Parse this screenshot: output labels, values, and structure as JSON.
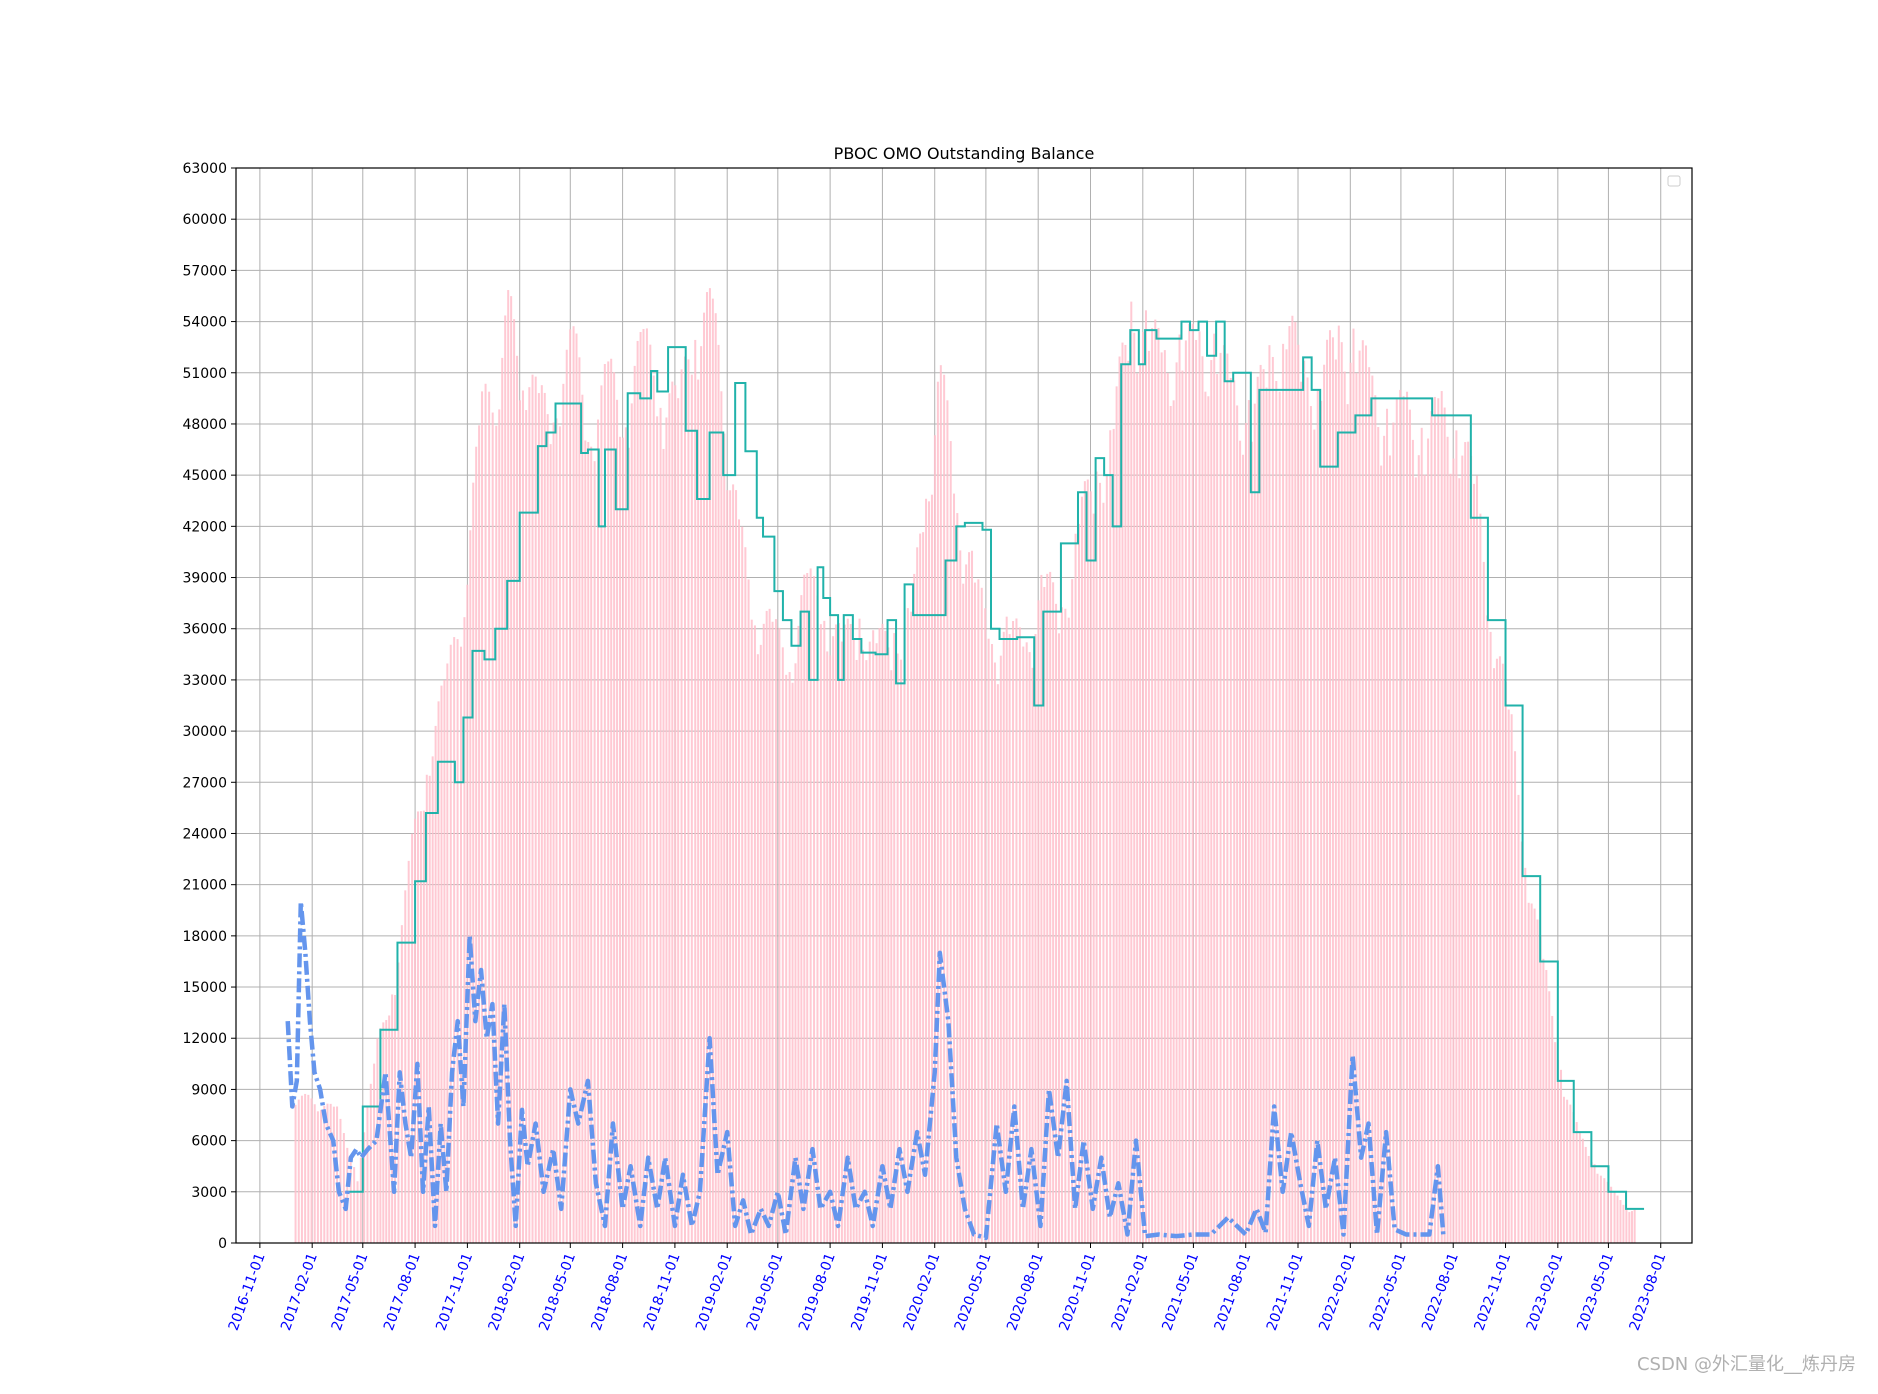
{
  "chart_data": {
    "type": "line",
    "title": "PBOC OMO Outstanding Balance",
    "xlabel": "",
    "ylabel": "",
    "xlim": [
      "2016-09-20",
      "2023-09-25"
    ],
    "ylim": [
      0,
      63000
    ],
    "grid": true,
    "legend": {
      "placement": "top-right",
      "entries": []
    },
    "x_tick_labels": [
      "2016-11-01",
      "2017-02-01",
      "2017-05-01",
      "2017-08-01",
      "2017-11-01",
      "2018-02-01",
      "2018-05-01",
      "2018-08-01",
      "2018-11-01",
      "2019-02-01",
      "2019-05-01",
      "2019-08-01",
      "2019-11-01",
      "2020-02-01",
      "2020-05-01",
      "2020-08-01",
      "2020-11-01",
      "2021-02-01",
      "2021-05-01",
      "2021-08-01",
      "2021-11-01",
      "2022-02-01",
      "2022-05-01",
      "2022-08-01",
      "2022-11-01",
      "2023-02-01",
      "2023-05-01",
      "2023-08-01"
    ],
    "y_tick_labels": [
      "0",
      "3000",
      "6000",
      "9000",
      "12000",
      "15000",
      "18000",
      "21000",
      "24000",
      "27000",
      "30000",
      "33000",
      "36000",
      "39000",
      "42000",
      "45000",
      "48000",
      "51000",
      "54000",
      "57000",
      "60000",
      "63000"
    ],
    "colors": {
      "bars": "#ffc0cb",
      "step_line": "#20b2aa",
      "dashdot_line": "#6495ed",
      "x_tick_text": "#0000ff"
    },
    "series": [
      {
        "type": "bar",
        "color": "#ffc0cb",
        "x": [
          "2017-01-01",
          "2017-03-15",
          "2017-04-20",
          "2017-05-25",
          "2017-06-25",
          "2017-07-25",
          "2017-08-25",
          "2017-09-25",
          "2017-10-25",
          "2017-11-25",
          "2017-12-20",
          "2018-01-10",
          "2018-02-05",
          "2018-03-05",
          "2018-04-05",
          "2018-05-05",
          "2018-06-05",
          "2018-07-05",
          "2018-08-05",
          "2018-09-05",
          "2018-10-05",
          "2018-11-05",
          "2018-12-05",
          "2019-01-05",
          "2019-01-25",
          "2019-02-20",
          "2019-03-20",
          "2019-04-20",
          "2019-05-20",
          "2019-06-20",
          "2019-07-20",
          "2019-08-20",
          "2019-09-20",
          "2019-10-20",
          "2019-11-20",
          "2019-12-20",
          "2020-01-15",
          "2020-02-10",
          "2020-03-10",
          "2020-04-10",
          "2020-05-10",
          "2020-06-10",
          "2020-07-10",
          "2020-08-10",
          "2020-09-10",
          "2020-10-10",
          "2020-11-10",
          "2020-12-10",
          "2021-01-10",
          "2021-02-10",
          "2021-03-10",
          "2021-04-10",
          "2021-05-10",
          "2021-06-10",
          "2021-07-10",
          "2021-08-10",
          "2021-09-10",
          "2021-10-10",
          "2021-11-10",
          "2021-12-10",
          "2022-01-10",
          "2022-02-10",
          "2022-03-10",
          "2022-04-10",
          "2022-05-10",
          "2022-06-10",
          "2022-07-10",
          "2022-08-10",
          "2022-09-10",
          "2022-10-10",
          "2022-11-10",
          "2022-12-10",
          "2023-01-10",
          "2023-02-10",
          "2023-03-10",
          "2023-04-10",
          "2023-05-10",
          "2023-06-05"
        ],
        "values": [
          9000,
          8000,
          4000,
          12000,
          16000,
          24000,
          30000,
          34000,
          40000,
          50000,
          52000,
          56000,
          54000,
          50000,
          52000,
          54000,
          50000,
          52000,
          51000,
          54000,
          52000,
          50000,
          56000,
          56000,
          50000,
          43000,
          38000,
          37000,
          35000,
          40000,
          38000,
          36000,
          38000,
          36000,
          37000,
          38000,
          45000,
          53000,
          44000,
          40000,
          36000,
          37000,
          36000,
          40000,
          38000,
          44000,
          46000,
          50000,
          56000,
          55000,
          53000,
          54000,
          54000,
          54000,
          51000,
          50000,
          53000,
          56000,
          52000,
          53000,
          54000,
          55000,
          51000,
          50000,
          50000,
          49000,
          50000,
          49000,
          45000,
          37000,
          31000,
          22000,
          16000,
          9500,
          6500,
          4500,
          3000,
          2000
        ]
      },
      {
        "type": "step",
        "color": "#20b2aa",
        "x": [
          "2017-04-01",
          "2017-05-01",
          "2017-06-01",
          "2017-07-01",
          "2017-08-01",
          "2017-08-20",
          "2017-09-10",
          "2017-10-10",
          "2017-10-25",
          "2017-11-10",
          "2017-12-01",
          "2017-12-20",
          "2018-01-10",
          "2018-02-01",
          "2018-03-05",
          "2018-03-20",
          "2018-04-05",
          "2018-05-20",
          "2018-06-01",
          "2018-06-20",
          "2018-07-01",
          "2018-07-20",
          "2018-08-10",
          "2018-09-01",
          "2018-09-20",
          "2018-10-01",
          "2018-10-20",
          "2018-11-20",
          "2018-12-10",
          "2019-01-01",
          "2019-01-25",
          "2019-02-15",
          "2019-03-05",
          "2019-03-25",
          "2019-04-05",
          "2019-04-25",
          "2019-05-10",
          "2019-05-25",
          "2019-06-10",
          "2019-06-25",
          "2019-07-10",
          "2019-07-20",
          "2019-08-01",
          "2019-08-15",
          "2019-08-25",
          "2019-09-10",
          "2019-09-25",
          "2019-10-20",
          "2019-11-10",
          "2019-11-25",
          "2019-12-10",
          "2019-12-25",
          "2020-01-20",
          "2020-02-20",
          "2020-03-10",
          "2020-03-25",
          "2020-04-10",
          "2020-04-25",
          "2020-05-10",
          "2020-05-25",
          "2020-06-10",
          "2020-06-25",
          "2020-07-10",
          "2020-07-25",
          "2020-08-10",
          "2020-08-25",
          "2020-09-10",
          "2020-09-25",
          "2020-10-10",
          "2020-10-25",
          "2020-11-10",
          "2020-11-25",
          "2020-12-10",
          "2020-12-25",
          "2021-01-10",
          "2021-01-25",
          "2021-02-05",
          "2021-02-25",
          "2021-03-10",
          "2021-03-25",
          "2021-04-10",
          "2021-04-25",
          "2021-05-10",
          "2021-05-25",
          "2021-06-10",
          "2021-06-25",
          "2021-07-10",
          "2021-07-25",
          "2021-08-10",
          "2021-08-25",
          "2021-09-10",
          "2021-09-25",
          "2021-10-10",
          "2021-10-25",
          "2021-11-10",
          "2021-11-25",
          "2021-12-10",
          "2021-12-25",
          "2022-01-10",
          "2022-01-25",
          "2022-02-10",
          "2022-02-25",
          "2022-03-10",
          "2022-03-25",
          "2022-04-10",
          "2022-04-25",
          "2022-05-10",
          "2022-05-25",
          "2022-06-10",
          "2022-06-25",
          "2022-07-10",
          "2022-08-01",
          "2022-09-01",
          "2022-10-01",
          "2022-11-01",
          "2022-12-01",
          "2023-01-01",
          "2023-02-01",
          "2023-03-01",
          "2023-04-01",
          "2023-05-01",
          "2023-06-01"
        ],
        "values": [
          3000,
          8000,
          12500,
          17600,
          21200,
          25200,
          28200,
          27000,
          30800,
          34700,
          34200,
          36000,
          38800,
          42800,
          46700,
          47500,
          49200,
          46300,
          46500,
          42000,
          46500,
          43000,
          49800,
          49500,
          51100,
          49900,
          52500,
          47600,
          43600,
          47500,
          45000,
          50400,
          46400,
          42500,
          41400,
          38200,
          36500,
          35000,
          37000,
          33000,
          39600,
          37800,
          36800,
          33000,
          36800,
          35400,
          34600,
          34500,
          36500,
          32800,
          38600,
          36800,
          36800,
          40000,
          42000,
          42200,
          42200,
          41800,
          36000,
          35400,
          35400,
          35500,
          35500,
          31500,
          37000,
          37000,
          41000,
          41000,
          44000,
          40000,
          46000,
          45000,
          42000,
          51500,
          53500,
          51500,
          53500,
          53000,
          53000,
          53000,
          54000,
          53500,
          54000,
          52000,
          54000,
          50500,
          51000,
          51000,
          44000,
          50000,
          50000,
          50000,
          50000,
          50000,
          51900,
          50000,
          45500,
          45500,
          47500,
          47500,
          48500,
          48500,
          49500,
          49500,
          49500,
          49500,
          49500,
          49500,
          49500,
          48500,
          48500,
          48500,
          42500,
          36500,
          31500,
          21500,
          16500,
          9500,
          6500,
          4500,
          3000,
          2000
        ]
      },
      {
        "type": "line",
        "style": "dashdot",
        "color": "#6495ed",
        "x": [
          "2016-12-20",
          "2016-12-28",
          "2017-01-05",
          "2017-01-12",
          "2017-01-20",
          "2017-01-28",
          "2017-02-05",
          "2017-02-15",
          "2017-02-25",
          "2017-03-10",
          "2017-03-20",
          "2017-04-01",
          "2017-04-10",
          "2017-04-20",
          "2017-04-28",
          "2017-05-10",
          "2017-05-25",
          "2017-06-10",
          "2017-06-25",
          "2017-07-05",
          "2017-07-15",
          "2017-07-25",
          "2017-08-05",
          "2017-08-15",
          "2017-08-25",
          "2017-09-05",
          "2017-09-15",
          "2017-09-25",
          "2017-10-05",
          "2017-10-15",
          "2017-10-25",
          "2017-11-05",
          "2017-11-15",
          "2017-11-25",
          "2017-12-05",
          "2017-12-15",
          "2017-12-25",
          "2018-01-05",
          "2018-01-15",
          "2018-01-25",
          "2018-02-05",
          "2018-02-15",
          "2018-03-01",
          "2018-03-15",
          "2018-04-01",
          "2018-04-15",
          "2018-05-01",
          "2018-05-15",
          "2018-06-01",
          "2018-06-15",
          "2018-07-01",
          "2018-07-15",
          "2018-08-01",
          "2018-08-15",
          "2018-09-01",
          "2018-09-15",
          "2018-10-01",
          "2018-10-15",
          "2018-11-01",
          "2018-11-15",
          "2018-12-01",
          "2018-12-15",
          "2019-01-01",
          "2019-01-15",
          "2019-02-01",
          "2019-02-15",
          "2019-03-01",
          "2019-03-15",
          "2019-04-01",
          "2019-04-15",
          "2019-05-01",
          "2019-05-15",
          "2019-06-01",
          "2019-06-15",
          "2019-07-01",
          "2019-07-15",
          "2019-08-01",
          "2019-08-15",
          "2019-09-01",
          "2019-09-15",
          "2019-10-01",
          "2019-10-15",
          "2019-11-01",
          "2019-11-15",
          "2019-12-01",
          "2019-12-15",
          "2020-01-01",
          "2020-01-15",
          "2020-02-01",
          "2020-02-10",
          "2020-02-25",
          "2020-03-10",
          "2020-03-25",
          "2020-04-10",
          "2020-05-01",
          "2020-05-20",
          "2020-06-05",
          "2020-06-20",
          "2020-07-05",
          "2020-07-20",
          "2020-08-05",
          "2020-08-20",
          "2020-09-05",
          "2020-09-20",
          "2020-10-05",
          "2020-10-20",
          "2020-11-05",
          "2020-11-20",
          "2020-12-05",
          "2020-12-20",
          "2021-01-05",
          "2021-01-20",
          "2021-02-05",
          "2021-03-01",
          "2021-04-01",
          "2021-05-01",
          "2021-06-01",
          "2021-07-01",
          "2021-08-01",
          "2021-08-20",
          "2021-09-05",
          "2021-09-20",
          "2021-10-05",
          "2021-10-20",
          "2021-11-05",
          "2021-11-20",
          "2021-12-05",
          "2021-12-20",
          "2022-01-05",
          "2022-01-20",
          "2022-02-05",
          "2022-02-20",
          "2022-03-05",
          "2022-03-20",
          "2022-04-05",
          "2022-04-20",
          "2022-05-10",
          "2022-06-01",
          "2022-06-20",
          "2022-07-05",
          "2022-07-15"
        ],
        "values": [
          13000,
          8000,
          9500,
          20000,
          17000,
          13000,
          10000,
          9000,
          7000,
          6000,
          3000,
          2000,
          5000,
          5500,
          5000,
          5500,
          6000,
          10000,
          3000,
          10000,
          7000,
          5000,
          10500,
          3000,
          8000,
          1000,
          7000,
          3000,
          10000,
          13000,
          8000,
          18000,
          13000,
          16000,
          12000,
          14000,
          7000,
          14000,
          6000,
          1000,
          7800,
          4500,
          7000,
          3000,
          5500,
          2000,
          9000,
          7000,
          9500,
          3500,
          1000,
          7000,
          2000,
          4500,
          1000,
          5000,
          2000,
          5000,
          1000,
          4000,
          1000,
          3000,
          12000,
          4000,
          6500,
          1000,
          2500,
          500,
          2000,
          1000,
          3000,
          500,
          5000,
          2000,
          5500,
          2000,
          3000,
          1000,
          5000,
          2000,
          3000,
          1000,
          4500,
          2000,
          5500,
          3000,
          6500,
          4000,
          10000,
          17000,
          13000,
          5000,
          2000,
          500,
          300,
          7000,
          3000,
          8000,
          2000,
          5500,
          1000,
          9000,
          5000,
          9500,
          2000,
          6000,
          2000,
          5000,
          1500,
          3500,
          500,
          6000,
          400,
          500,
          400,
          500,
          500,
          1500,
          500,
          2000,
          600,
          8000,
          3000,
          6500,
          3500,
          1000,
          6000,
          2000,
          5000,
          500,
          11000,
          5000,
          7000,
          500,
          6500,
          800,
          500,
          500,
          500,
          4500,
          300
        ]
      }
    ]
  },
  "watermark": "CSDN @外汇量化__炼丹房"
}
